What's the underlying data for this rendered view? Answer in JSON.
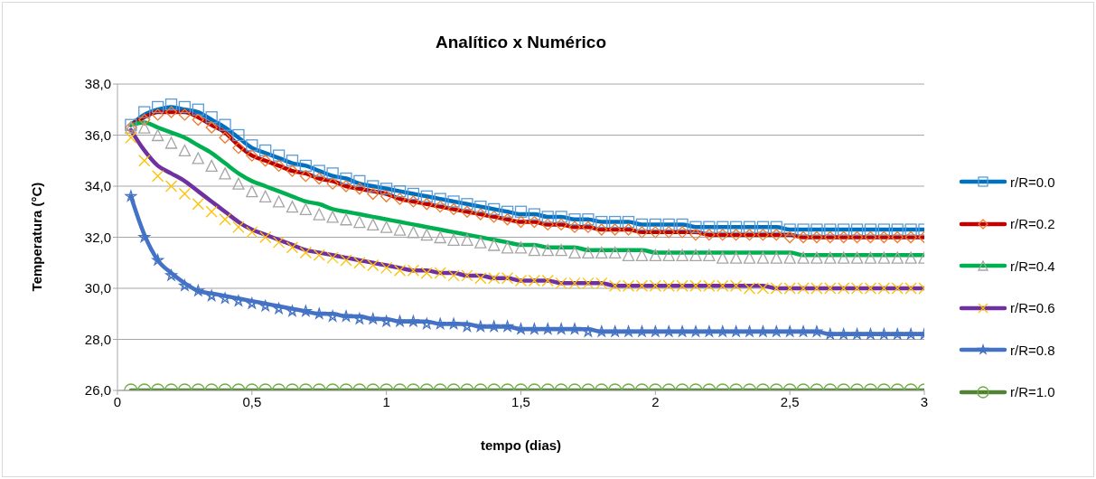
{
  "chart_data": {
    "type": "line",
    "title": "Analítico x Numérico",
    "xlabel": "tempo (dias)",
    "ylabel": "Temperatura (°C)",
    "x": [
      0.05,
      0.1,
      0.15,
      0.2,
      0.25,
      0.3,
      0.35,
      0.4,
      0.45,
      0.5,
      0.55,
      0.6,
      0.65,
      0.7,
      0.75,
      0.8,
      0.85,
      0.9,
      0.95,
      1.0,
      1.05,
      1.1,
      1.15,
      1.2,
      1.25,
      1.3,
      1.35,
      1.4,
      1.45,
      1.5,
      1.55,
      1.6,
      1.65,
      1.7,
      1.75,
      1.8,
      1.85,
      1.9,
      1.95,
      2.0,
      2.05,
      2.1,
      2.15,
      2.2,
      2.25,
      2.3,
      2.35,
      2.4,
      2.45,
      2.5,
      2.55,
      2.6,
      2.65,
      2.7,
      2.75,
      2.8,
      2.85,
      2.9,
      2.95,
      3.0
    ],
    "xlim": [
      0,
      3
    ],
    "xticks": [
      0,
      {
        "value": 0.5,
        "label": "0,5"
      },
      1,
      {
        "value": 1.5,
        "label": "1,5"
      },
      2,
      {
        "value": 2.5,
        "label": "2,5"
      },
      3
    ],
    "ylim": [
      26,
      38
    ],
    "yticks": [
      {
        "value": 26,
        "label": "26,0"
      },
      {
        "value": 28,
        "label": "28,0"
      },
      {
        "value": 30,
        "label": "30,0"
      },
      {
        "value": 32,
        "label": "32,0"
      },
      {
        "value": 34,
        "label": "34,0"
      },
      {
        "value": 36,
        "label": "36,0"
      },
      {
        "value": 38,
        "label": "38,0"
      }
    ],
    "grid": "y",
    "legend": "right",
    "series": [
      {
        "name": "r/R=0.0",
        "marker": "none",
        "color": "#0070c0",
        "values": [
          36.4,
          36.8,
          37.0,
          37.1,
          37.0,
          36.9,
          36.6,
          36.3,
          35.9,
          35.5,
          35.3,
          35.1,
          34.9,
          34.8,
          34.6,
          34.4,
          34.3,
          34.1,
          34.0,
          33.9,
          33.8,
          33.7,
          33.6,
          33.5,
          33.4,
          33.3,
          33.2,
          33.1,
          33.0,
          32.9,
          32.9,
          32.8,
          32.8,
          32.7,
          32.7,
          32.6,
          32.6,
          32.6,
          32.5,
          32.5,
          32.5,
          32.5,
          32.4,
          32.4,
          32.4,
          32.4,
          32.4,
          32.4,
          32.4,
          32.3,
          32.3,
          32.3,
          32.3,
          32.3,
          32.3,
          32.3,
          32.3,
          32.3,
          32.3,
          32.3
        ]
      },
      {
        "name": "r/R=0.2",
        "marker": "none",
        "color": "#c00000",
        "values": [
          36.4,
          36.7,
          36.9,
          36.9,
          36.9,
          36.7,
          36.4,
          36.1,
          35.6,
          35.2,
          35.0,
          34.8,
          34.6,
          34.5,
          34.3,
          34.2,
          34.0,
          33.9,
          33.8,
          33.7,
          33.5,
          33.4,
          33.3,
          33.2,
          33.1,
          33.0,
          32.9,
          32.8,
          32.7,
          32.6,
          32.6,
          32.5,
          32.5,
          32.4,
          32.4,
          32.3,
          32.3,
          32.3,
          32.2,
          32.2,
          32.2,
          32.2,
          32.2,
          32.1,
          32.1,
          32.1,
          32.1,
          32.1,
          32.1,
          32.1,
          32.0,
          32.0,
          32.0,
          32.0,
          32.0,
          32.0,
          32.0,
          32.0,
          32.0,
          32.0
        ]
      },
      {
        "name": "r/R=0.4",
        "marker": "none",
        "color": "#00b050",
        "values": [
          36.4,
          36.5,
          36.3,
          36.1,
          35.9,
          35.6,
          35.3,
          34.9,
          34.5,
          34.2,
          34.0,
          33.8,
          33.6,
          33.4,
          33.3,
          33.1,
          33.0,
          32.9,
          32.8,
          32.7,
          32.6,
          32.5,
          32.4,
          32.3,
          32.2,
          32.1,
          32.0,
          31.9,
          31.8,
          31.7,
          31.7,
          31.6,
          31.6,
          31.6,
          31.5,
          31.5,
          31.5,
          31.5,
          31.5,
          31.4,
          31.4,
          31.4,
          31.4,
          31.4,
          31.4,
          31.4,
          31.4,
          31.4,
          31.4,
          31.4,
          31.3,
          31.3,
          31.3,
          31.3,
          31.3,
          31.3,
          31.3,
          31.3,
          31.3,
          31.3
        ]
      },
      {
        "name": "r/R=0.6",
        "marker": "none",
        "color": "#7030a0",
        "values": [
          36.2,
          35.4,
          34.8,
          34.5,
          34.2,
          33.8,
          33.4,
          33.0,
          32.6,
          32.3,
          32.1,
          31.9,
          31.7,
          31.5,
          31.4,
          31.3,
          31.2,
          31.1,
          31.0,
          30.9,
          30.8,
          30.7,
          30.7,
          30.6,
          30.6,
          30.5,
          30.5,
          30.4,
          30.4,
          30.3,
          30.3,
          30.3,
          30.2,
          30.2,
          30.2,
          30.2,
          30.1,
          30.1,
          30.1,
          30.1,
          30.1,
          30.1,
          30.1,
          30.1,
          30.1,
          30.1,
          30.1,
          30.1,
          30.0,
          30.0,
          30.0,
          30.0,
          30.0,
          30.0,
          30.0,
          30.0,
          30.0,
          30.0,
          30.0,
          30.0
        ]
      },
      {
        "name": "r/R=0.8",
        "marker": "none",
        "color": "#4472c4",
        "values": [
          33.6,
          32.1,
          31.1,
          30.6,
          30.2,
          29.9,
          29.8,
          29.7,
          29.6,
          29.5,
          29.4,
          29.3,
          29.2,
          29.1,
          29.0,
          29.0,
          28.9,
          28.9,
          28.8,
          28.8,
          28.7,
          28.7,
          28.7,
          28.6,
          28.6,
          28.6,
          28.5,
          28.5,
          28.5,
          28.4,
          28.4,
          28.4,
          28.4,
          28.4,
          28.4,
          28.3,
          28.3,
          28.3,
          28.3,
          28.3,
          28.3,
          28.3,
          28.3,
          28.3,
          28.3,
          28.3,
          28.3,
          28.3,
          28.3,
          28.3,
          28.3,
          28.3,
          28.2,
          28.2,
          28.2,
          28.2,
          28.2,
          28.2,
          28.2,
          28.2
        ]
      },
      {
        "name": "r/R=1.0",
        "marker": "none",
        "color": "#548235",
        "values": [
          26.0,
          26.0,
          26.0,
          26.0,
          26.0,
          26.0,
          26.0,
          26.0,
          26.0,
          26.0,
          26.0,
          26.0,
          26.0,
          26.0,
          26.0,
          26.0,
          26.0,
          26.0,
          26.0,
          26.0,
          26.0,
          26.0,
          26.0,
          26.0,
          26.0,
          26.0,
          26.0,
          26.0,
          26.0,
          26.0,
          26.0,
          26.0,
          26.0,
          26.0,
          26.0,
          26.0,
          26.0,
          26.0,
          26.0,
          26.0,
          26.0,
          26.0,
          26.0,
          26.0,
          26.0,
          26.0,
          26.0,
          26.0,
          26.0,
          26.0,
          26.0,
          26.0,
          26.0,
          26.0,
          26.0,
          26.0,
          26.0,
          26.0,
          26.0,
          26.0
        ]
      },
      {
        "type": "scatter",
        "marker": "square",
        "color": "#5b9bd5",
        "values": [
          36.4,
          36.9,
          37.1,
          37.2,
          37.1,
          37.0,
          36.7,
          36.4,
          36.0,
          35.6,
          35.4,
          35.2,
          35.0,
          34.8,
          34.6,
          34.5,
          34.3,
          34.2,
          34.0,
          33.9,
          33.8,
          33.7,
          33.6,
          33.5,
          33.4,
          33.3,
          33.2,
          33.1,
          33.0,
          33.0,
          32.9,
          32.8,
          32.8,
          32.7,
          32.7,
          32.6,
          32.6,
          32.6,
          32.5,
          32.5,
          32.5,
          32.5,
          32.4,
          32.4,
          32.4,
          32.4,
          32.4,
          32.4,
          32.4,
          32.3,
          32.3,
          32.3,
          32.3,
          32.3,
          32.3,
          32.3,
          32.3,
          32.3,
          32.3,
          32.3
        ]
      },
      {
        "type": "scatter",
        "marker": "diamond",
        "color": "#ed7d31",
        "values": [
          36.3,
          36.6,
          36.8,
          36.9,
          36.8,
          36.6,
          36.3,
          35.9,
          35.5,
          35.2,
          35.0,
          34.8,
          34.6,
          34.4,
          34.3,
          34.1,
          34.0,
          33.9,
          33.7,
          33.6,
          33.5,
          33.4,
          33.3,
          33.2,
          33.1,
          33.0,
          32.9,
          32.8,
          32.7,
          32.6,
          32.6,
          32.5,
          32.5,
          32.4,
          32.4,
          32.3,
          32.3,
          32.3,
          32.2,
          32.2,
          32.2,
          32.2,
          32.1,
          32.1,
          32.1,
          32.1,
          32.1,
          32.1,
          32.1,
          32.0,
          32.0,
          32.0,
          32.0,
          32.0,
          32.0,
          32.0,
          32.0,
          32.0,
          32.0,
          32.0
        ]
      },
      {
        "type": "scatter",
        "marker": "triangle",
        "color": "#a5a5a5",
        "values": [
          36.3,
          36.3,
          36.0,
          35.7,
          35.4,
          35.1,
          34.8,
          34.5,
          34.1,
          33.8,
          33.6,
          33.4,
          33.2,
          33.1,
          32.9,
          32.8,
          32.7,
          32.6,
          32.5,
          32.4,
          32.3,
          32.2,
          32.1,
          32.0,
          31.9,
          31.9,
          31.8,
          31.7,
          31.6,
          31.6,
          31.5,
          31.5,
          31.5,
          31.4,
          31.4,
          31.4,
          31.4,
          31.3,
          31.3,
          31.3,
          31.3,
          31.3,
          31.3,
          31.3,
          31.2,
          31.2,
          31.2,
          31.2,
          31.2,
          31.2,
          31.2,
          31.2,
          31.2,
          31.2,
          31.2,
          31.2,
          31.2,
          31.2,
          31.2,
          31.2
        ]
      },
      {
        "type": "scatter",
        "marker": "cross",
        "color": "#ffc000",
        "values": [
          35.9,
          35.0,
          34.4,
          34.0,
          33.7,
          33.3,
          33.0,
          32.7,
          32.4,
          32.2,
          32.0,
          31.8,
          31.6,
          31.4,
          31.3,
          31.2,
          31.1,
          31.0,
          30.9,
          30.8,
          30.7,
          30.7,
          30.6,
          30.6,
          30.5,
          30.5,
          30.4,
          30.4,
          30.4,
          30.3,
          30.3,
          30.3,
          30.2,
          30.2,
          30.2,
          30.2,
          30.1,
          30.1,
          30.1,
          30.1,
          30.1,
          30.1,
          30.1,
          30.1,
          30.1,
          30.1,
          30.0,
          30.0,
          30.0,
          30.0,
          30.0,
          30.0,
          30.0,
          30.0,
          30.0,
          30.0,
          30.0,
          30.0,
          30.0,
          30.0
        ]
      },
      {
        "type": "scatter",
        "marker": "star",
        "color": "#4472c4",
        "values": [
          33.6,
          32.0,
          31.1,
          30.5,
          30.1,
          29.9,
          29.7,
          29.6,
          29.5,
          29.4,
          29.3,
          29.2,
          29.1,
          29.1,
          29.0,
          28.9,
          28.9,
          28.8,
          28.8,
          28.7,
          28.7,
          28.7,
          28.6,
          28.6,
          28.6,
          28.5,
          28.5,
          28.5,
          28.5,
          28.4,
          28.4,
          28.4,
          28.4,
          28.4,
          28.3,
          28.3,
          28.3,
          28.3,
          28.3,
          28.3,
          28.3,
          28.3,
          28.3,
          28.3,
          28.3,
          28.3,
          28.3,
          28.3,
          28.3,
          28.3,
          28.3,
          28.3,
          28.2,
          28.2,
          28.2,
          28.2,
          28.2,
          28.2,
          28.2,
          28.2
        ]
      },
      {
        "type": "scatter",
        "marker": "circle",
        "color": "#70ad47",
        "values": [
          26.0,
          26.0,
          26.0,
          26.0,
          26.0,
          26.0,
          26.0,
          26.0,
          26.0,
          26.0,
          26.0,
          26.0,
          26.0,
          26.0,
          26.0,
          26.0,
          26.0,
          26.0,
          26.0,
          26.0,
          26.0,
          26.0,
          26.0,
          26.0,
          26.0,
          26.0,
          26.0,
          26.0,
          26.0,
          26.0,
          26.0,
          26.0,
          26.0,
          26.0,
          26.0,
          26.0,
          26.0,
          26.0,
          26.0,
          26.0,
          26.0,
          26.0,
          26.0,
          26.0,
          26.0,
          26.0,
          26.0,
          26.0,
          26.0,
          26.0,
          26.0,
          26.0,
          26.0,
          26.0,
          26.0,
          26.0,
          26.0,
          26.0,
          26.0,
          26.0
        ]
      }
    ]
  }
}
